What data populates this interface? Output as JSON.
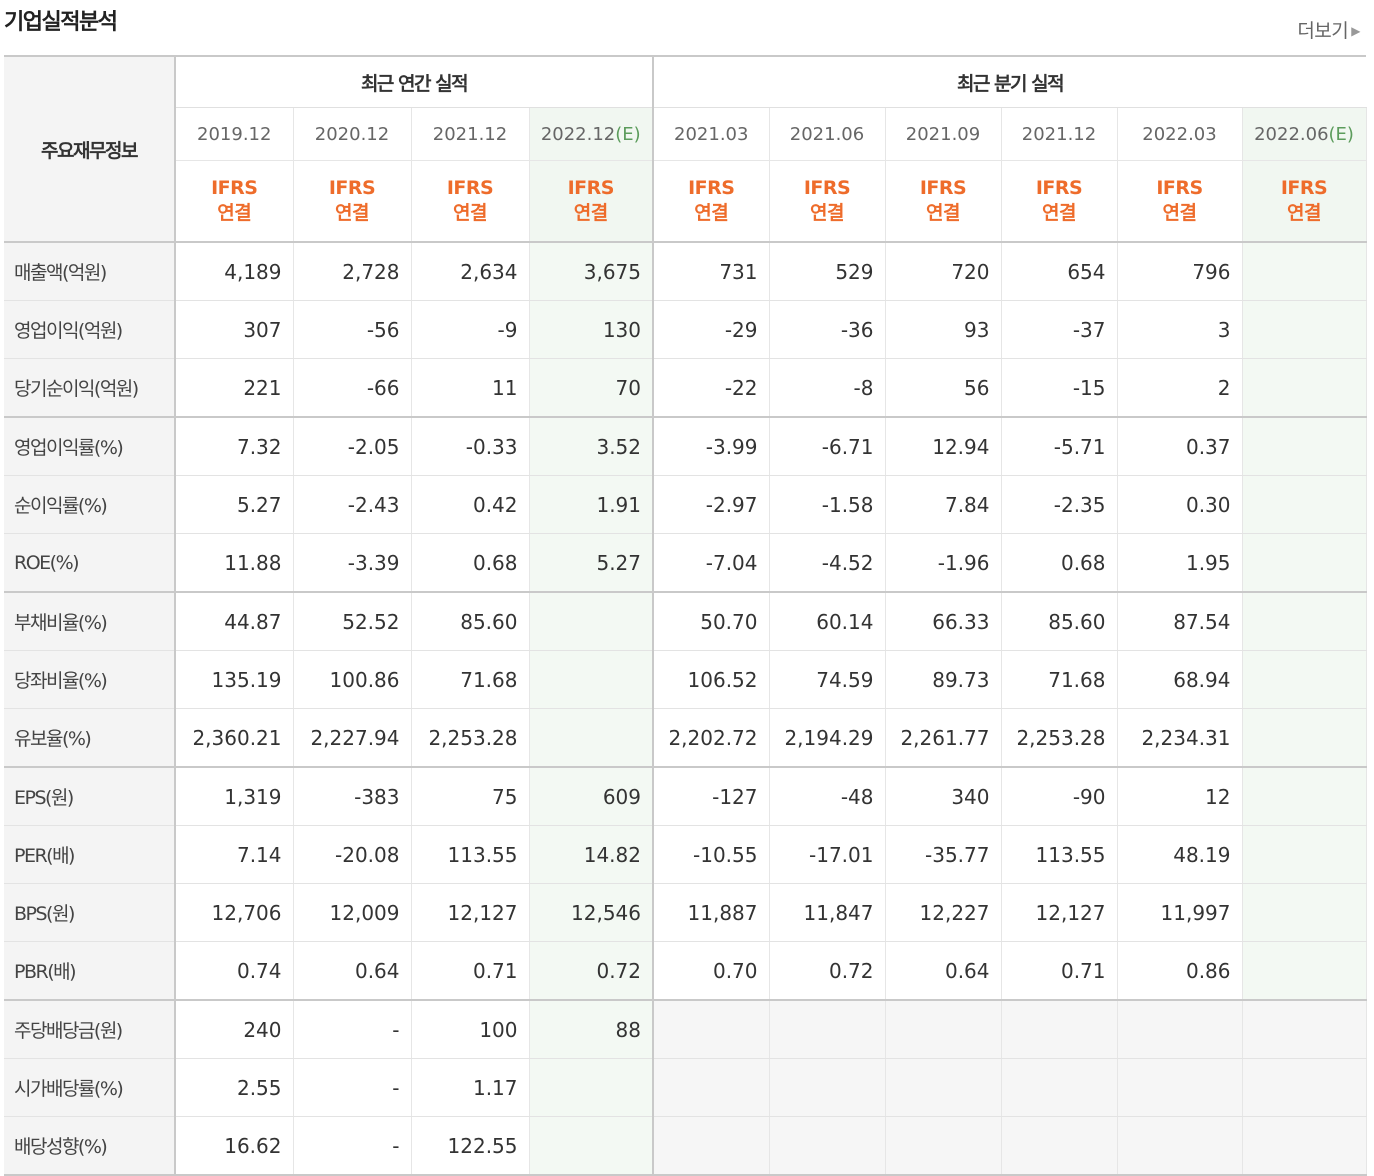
{
  "header": {
    "title": "기업실적분석",
    "more_label": "더보기"
  },
  "table": {
    "label_header": "주요재무정보",
    "annual_group": "최근 연간 실적",
    "quarter_group": "최근 분기 실적",
    "estimate_mark": "(E)",
    "periods": [
      {
        "date": "2019.12",
        "estimate": false
      },
      {
        "date": "2020.12",
        "estimate": false
      },
      {
        "date": "2021.12",
        "estimate": false
      },
      {
        "date": "2022.12",
        "estimate": true
      },
      {
        "date": "2021.03",
        "estimate": false
      },
      {
        "date": "2021.06",
        "estimate": false
      },
      {
        "date": "2021.09",
        "estimate": false
      },
      {
        "date": "2021.12",
        "estimate": false
      },
      {
        "date": "2022.03",
        "estimate": false
      },
      {
        "date": "2022.06",
        "estimate": true
      }
    ],
    "basis_line1": "IFRS",
    "basis_line2": "연결",
    "rows": [
      {
        "label": "매출액(억원)",
        "values": [
          "4,189",
          "2,728",
          "2,634",
          "3,675",
          "731",
          "529",
          "720",
          "654",
          "796",
          ""
        ]
      },
      {
        "label": "영업이익(억원)",
        "values": [
          "307",
          "-56",
          "-9",
          "130",
          "-29",
          "-36",
          "93",
          "-37",
          "3",
          ""
        ]
      },
      {
        "label": "당기순이익(억원)",
        "values": [
          "221",
          "-66",
          "11",
          "70",
          "-22",
          "-8",
          "56",
          "-15",
          "2",
          ""
        ],
        "group_end": true
      },
      {
        "label": "영업이익률(%)",
        "values": [
          "7.32",
          "-2.05",
          "-0.33",
          "3.52",
          "-3.99",
          "-6.71",
          "12.94",
          "-5.71",
          "0.37",
          ""
        ]
      },
      {
        "label": "순이익률(%)",
        "values": [
          "5.27",
          "-2.43",
          "0.42",
          "1.91",
          "-2.97",
          "-1.58",
          "7.84",
          "-2.35",
          "0.30",
          ""
        ]
      },
      {
        "label": "ROE(%)",
        "values": [
          "11.88",
          "-3.39",
          "0.68",
          "5.27",
          "-7.04",
          "-4.52",
          "-1.96",
          "0.68",
          "1.95",
          ""
        ],
        "group_end": true
      },
      {
        "label": "부채비율(%)",
        "values": [
          "44.87",
          "52.52",
          "85.60",
          "",
          "50.70",
          "60.14",
          "66.33",
          "85.60",
          "87.54",
          ""
        ]
      },
      {
        "label": "당좌비율(%)",
        "values": [
          "135.19",
          "100.86",
          "71.68",
          "",
          "106.52",
          "74.59",
          "89.73",
          "71.68",
          "68.94",
          ""
        ]
      },
      {
        "label": "유보율(%)",
        "values": [
          "2,360.21",
          "2,227.94",
          "2,253.28",
          "",
          "2,202.72",
          "2,194.29",
          "2,261.77",
          "2,253.28",
          "2,234.31",
          ""
        ],
        "group_end": true
      },
      {
        "label": "EPS(원)",
        "values": [
          "1,319",
          "-383",
          "75",
          "609",
          "-127",
          "-48",
          "340",
          "-90",
          "12",
          ""
        ]
      },
      {
        "label": "PER(배)",
        "values": [
          "7.14",
          "-20.08",
          "113.55",
          "14.82",
          "-10.55",
          "-17.01",
          "-35.77",
          "113.55",
          "48.19",
          ""
        ]
      },
      {
        "label": "BPS(원)",
        "values": [
          "12,706",
          "12,009",
          "12,127",
          "12,546",
          "11,887",
          "11,847",
          "12,227",
          "12,127",
          "11,997",
          ""
        ]
      },
      {
        "label": "PBR(배)",
        "values": [
          "0.74",
          "0.64",
          "0.71",
          "0.72",
          "0.70",
          "0.72",
          "0.64",
          "0.71",
          "0.86",
          ""
        ],
        "group_end": true
      },
      {
        "label": "주당배당금(원)",
        "values": [
          "240",
          "-",
          "100",
          "88",
          "",
          "",
          "",
          "",
          "",
          ""
        ],
        "quarter_blank": true
      },
      {
        "label": "시가배당률(%)",
        "values": [
          "2.55",
          "-",
          "1.17",
          "",
          "",
          "",
          "",
          "",
          "",
          ""
        ],
        "quarter_blank": true
      },
      {
        "label": "배당성향(%)",
        "values": [
          "16.62",
          "-",
          "122.55",
          "",
          "",
          "",
          "",
          "",
          "",
          ""
        ],
        "quarter_blank": true,
        "group_end": true
      }
    ]
  },
  "colors": {
    "negative": "#dd0000",
    "basis": "#ee6c2b",
    "estimate_bg": "#f3f9f3",
    "estimate_mark": "#5c9c5c"
  }
}
